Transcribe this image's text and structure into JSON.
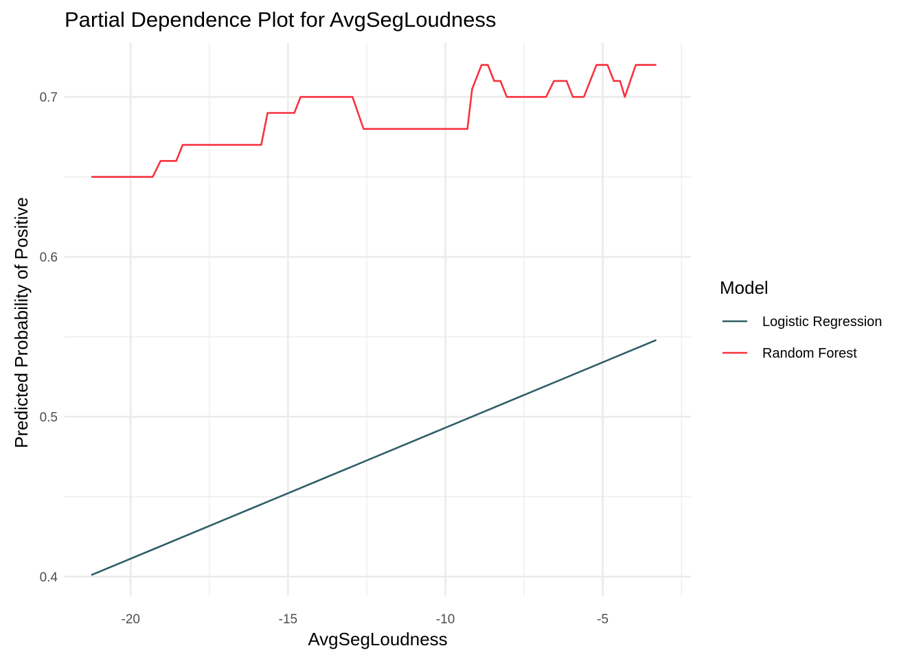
{
  "chart_data": {
    "type": "line",
    "title": "Partial Dependence Plot for AvgSegLoudness",
    "xlabel": "AvgSegLoudness",
    "ylabel": "Predicted Probability of Positive",
    "xlim": [
      -22.1,
      -2.2
    ],
    "ylim": [
      0.388,
      0.734
    ],
    "x_ticks": [
      -20,
      -15,
      -10,
      -5
    ],
    "x_tick_labels": [
      "-20",
      "-15",
      "-10",
      "-5"
    ],
    "y_ticks": [
      0.4,
      0.5,
      0.6,
      0.7
    ],
    "y_tick_labels": [
      "0.4",
      "0.5",
      "0.6",
      "0.7"
    ],
    "grid": true,
    "legend": {
      "title": "Model",
      "position": "right"
    },
    "series": [
      {
        "name": "Logistic Regression",
        "color": "#2f5d66",
        "points": [
          [
            -21.25,
            0.401
          ],
          [
            -3.3,
            0.548
          ]
        ]
      },
      {
        "name": "Random Forest",
        "color": "#f8313d",
        "points": [
          [
            -21.25,
            0.65
          ],
          [
            -19.3,
            0.65
          ],
          [
            -19.05,
            0.66
          ],
          [
            -18.55,
            0.66
          ],
          [
            -18.35,
            0.67
          ],
          [
            -15.85,
            0.67
          ],
          [
            -15.65,
            0.69
          ],
          [
            -14.8,
            0.69
          ],
          [
            -14.6,
            0.7
          ],
          [
            -12.95,
            0.7
          ],
          [
            -12.6,
            0.68
          ],
          [
            -9.3,
            0.68
          ],
          [
            -9.15,
            0.705
          ],
          [
            -9.05,
            0.71
          ],
          [
            -8.85,
            0.72
          ],
          [
            -8.65,
            0.72
          ],
          [
            -8.45,
            0.71
          ],
          [
            -8.25,
            0.71
          ],
          [
            -8.05,
            0.7
          ],
          [
            -6.8,
            0.7
          ],
          [
            -6.55,
            0.71
          ],
          [
            -6.15,
            0.71
          ],
          [
            -5.95,
            0.7
          ],
          [
            -5.6,
            0.7
          ],
          [
            -5.2,
            0.72
          ],
          [
            -4.85,
            0.72
          ],
          [
            -4.65,
            0.71
          ],
          [
            -4.45,
            0.71
          ],
          [
            -4.3,
            0.7
          ],
          [
            -3.95,
            0.72
          ],
          [
            -3.3,
            0.72
          ]
        ]
      }
    ]
  }
}
